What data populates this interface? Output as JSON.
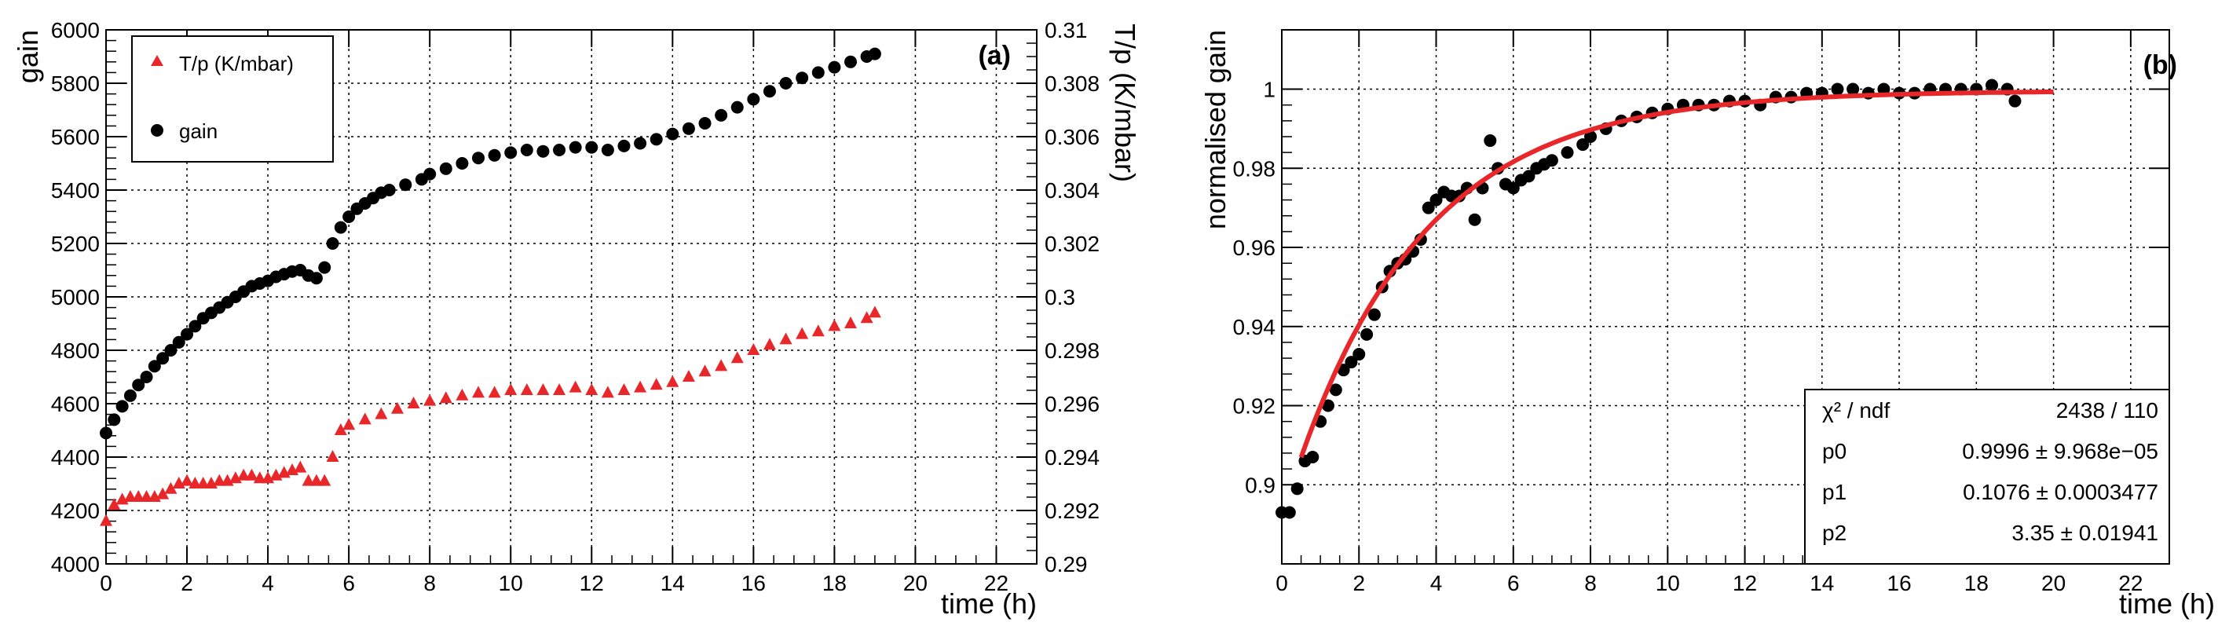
{
  "chart_data": [
    {
      "type": "scatter",
      "panel_label": "(a)",
      "xlabel": "time (h)",
      "ylabel": "gain",
      "y2label": "T/p (K/mbar)",
      "xlim": [
        0,
        23
      ],
      "ylim": [
        4000,
        6000
      ],
      "y2lim": [
        0.29,
        0.31
      ],
      "grid": true,
      "legend_position": "top-left",
      "x_ticks": [
        "0",
        "2",
        "4",
        "6",
        "8",
        "10",
        "12",
        "14",
        "16",
        "18",
        "20",
        "22"
      ],
      "y_ticks": [
        "4000",
        "4200",
        "4400",
        "4600",
        "4800",
        "5000",
        "5200",
        "5400",
        "5600",
        "5800",
        "6000"
      ],
      "y2_ticks": [
        "0.29",
        "0.292",
        "0.294",
        "0.296",
        "0.298",
        "0.3",
        "0.302",
        "0.304",
        "0.306",
        "0.308",
        "0.31"
      ],
      "series": [
        {
          "name": "gain",
          "axis": "left",
          "marker": "circle",
          "color": "#000000",
          "points": [
            [
              0,
              4490
            ],
            [
              0.2,
              4540
            ],
            [
              0.4,
              4590
            ],
            [
              0.6,
              4630
            ],
            [
              0.8,
              4670
            ],
            [
              1,
              4700
            ],
            [
              1.2,
              4740
            ],
            [
              1.4,
              4770
            ],
            [
              1.6,
              4800
            ],
            [
              1.8,
              4830
            ],
            [
              2,
              4860
            ],
            [
              2.2,
              4890
            ],
            [
              2.4,
              4920
            ],
            [
              2.6,
              4940
            ],
            [
              2.8,
              4960
            ],
            [
              3,
              4980
            ],
            [
              3.2,
              5000
            ],
            [
              3.4,
              5020
            ],
            [
              3.6,
              5040
            ],
            [
              3.8,
              5050
            ],
            [
              4,
              5060
            ],
            [
              4.2,
              5075
            ],
            [
              4.4,
              5085
            ],
            [
              4.6,
              5095
            ],
            [
              4.8,
              5100
            ],
            [
              5,
              5080
            ],
            [
              5.2,
              5070
            ],
            [
              5.4,
              5110
            ],
            [
              5.6,
              5200
            ],
            [
              5.8,
              5260
            ],
            [
              6,
              5300
            ],
            [
              6.2,
              5330
            ],
            [
              6.4,
              5350
            ],
            [
              6.6,
              5370
            ],
            [
              6.8,
              5390
            ],
            [
              7,
              5400
            ],
            [
              7.4,
              5420
            ],
            [
              7.8,
              5440
            ],
            [
              8,
              5460
            ],
            [
              8.4,
              5480
            ],
            [
              8.8,
              5500
            ],
            [
              9.2,
              5520
            ],
            [
              9.6,
              5530
            ],
            [
              10,
              5540
            ],
            [
              10.4,
              5550
            ],
            [
              10.8,
              5545
            ],
            [
              11.2,
              5550
            ],
            [
              11.6,
              5560
            ],
            [
              12,
              5560
            ],
            [
              12.4,
              5550
            ],
            [
              12.8,
              5565
            ],
            [
              13.2,
              5575
            ],
            [
              13.6,
              5590
            ],
            [
              14,
              5610
            ],
            [
              14.4,
              5630
            ],
            [
              14.8,
              5650
            ],
            [
              15.2,
              5680
            ],
            [
              15.6,
              5710
            ],
            [
              16,
              5740
            ],
            [
              16.4,
              5770
            ],
            [
              16.8,
              5800
            ],
            [
              17.2,
              5820
            ],
            [
              17.6,
              5840
            ],
            [
              18,
              5860
            ],
            [
              18.4,
              5880
            ],
            [
              18.8,
              5900
            ],
            [
              19,
              5910
            ]
          ]
        },
        {
          "name": "T/p (K/mbar)",
          "axis": "right",
          "marker": "triangle",
          "color": "#e8272a",
          "points": [
            [
              0,
              0.2916
            ],
            [
              0.2,
              0.2922
            ],
            [
              0.4,
              0.2924
            ],
            [
              0.6,
              0.2925
            ],
            [
              0.8,
              0.2925
            ],
            [
              1,
              0.2925
            ],
            [
              1.2,
              0.2925
            ],
            [
              1.4,
              0.2926
            ],
            [
              1.6,
              0.2928
            ],
            [
              1.8,
              0.293
            ],
            [
              2,
              0.2931
            ],
            [
              2.2,
              0.293
            ],
            [
              2.4,
              0.293
            ],
            [
              2.6,
              0.293
            ],
            [
              2.8,
              0.2931
            ],
            [
              3,
              0.2931
            ],
            [
              3.2,
              0.2932
            ],
            [
              3.4,
              0.2933
            ],
            [
              3.6,
              0.2933
            ],
            [
              3.8,
              0.2932
            ],
            [
              4,
              0.2932
            ],
            [
              4.2,
              0.2933
            ],
            [
              4.4,
              0.2934
            ],
            [
              4.6,
              0.2935
            ],
            [
              4.8,
              0.2936
            ],
            [
              5,
              0.2931
            ],
            [
              5.2,
              0.2931
            ],
            [
              5.4,
              0.2931
            ],
            [
              5.6,
              0.294
            ],
            [
              5.8,
              0.295
            ],
            [
              6,
              0.2952
            ],
            [
              6.4,
              0.2954
            ],
            [
              6.8,
              0.2956
            ],
            [
              7.2,
              0.2958
            ],
            [
              7.6,
              0.296
            ],
            [
              8,
              0.2961
            ],
            [
              8.4,
              0.2962
            ],
            [
              8.8,
              0.2963
            ],
            [
              9.2,
              0.2964
            ],
            [
              9.6,
              0.2964
            ],
            [
              10,
              0.2965
            ],
            [
              10.4,
              0.2965
            ],
            [
              10.8,
              0.2965
            ],
            [
              11.2,
              0.2965
            ],
            [
              11.6,
              0.2966
            ],
            [
              12,
              0.2965
            ],
            [
              12.4,
              0.2964
            ],
            [
              12.8,
              0.2965
            ],
            [
              13.2,
              0.2966
            ],
            [
              13.6,
              0.2967
            ],
            [
              14,
              0.2968
            ],
            [
              14.4,
              0.297
            ],
            [
              14.8,
              0.2972
            ],
            [
              15.2,
              0.2974
            ],
            [
              15.6,
              0.2977
            ],
            [
              16,
              0.298
            ],
            [
              16.4,
              0.2982
            ],
            [
              16.8,
              0.2984
            ],
            [
              17.2,
              0.2986
            ],
            [
              17.6,
              0.2987
            ],
            [
              18,
              0.2989
            ],
            [
              18.4,
              0.299
            ],
            [
              18.8,
              0.2992
            ],
            [
              19,
              0.2994
            ]
          ]
        }
      ]
    },
    {
      "type": "scatter",
      "panel_label": "(b)",
      "xlabel": "time (h)",
      "ylabel": "normalised gain",
      "xlim": [
        0,
        23
      ],
      "ylim": [
        0.88,
        1.015
      ],
      "grid": true,
      "x_ticks": [
        "0",
        "2",
        "4",
        "6",
        "8",
        "10",
        "12",
        "14",
        "16",
        "18",
        "20",
        "22"
      ],
      "y_ticks": [
        "0.9",
        "0.92",
        "0.94",
        "0.96",
        "0.98",
        "1"
      ],
      "fit": {
        "color": "#e8272a",
        "x_range": [
          0.5,
          20
        ],
        "p0": 0.9996,
        "p1": 0.1076,
        "p2": 3.35
      },
      "stats_box": [
        {
          "label": "χ² / ndf",
          "value": "2438 / 110"
        },
        {
          "label": "p0",
          "value": "0.9996 ± 9.968e−05"
        },
        {
          "label": "p1",
          "value": "0.1076 ± 0.0003477"
        },
        {
          "label": "p2",
          "value": "3.35 ± 0.01941"
        }
      ],
      "series": [
        {
          "name": "normalised gain",
          "marker": "circle",
          "color": "#000000",
          "points": [
            [
              0,
              0.893
            ],
            [
              0.2,
              0.893
            ],
            [
              0.4,
              0.899
            ],
            [
              0.6,
              0.906
            ],
            [
              0.8,
              0.907
            ],
            [
              1,
              0.916
            ],
            [
              1.2,
              0.92
            ],
            [
              1.4,
              0.924
            ],
            [
              1.6,
              0.929
            ],
            [
              1.8,
              0.931
            ],
            [
              2,
              0.933
            ],
            [
              2.2,
              0.938
            ],
            [
              2.4,
              0.943
            ],
            [
              2.6,
              0.95
            ],
            [
              2.8,
              0.954
            ],
            [
              3,
              0.956
            ],
            [
              3.2,
              0.957
            ],
            [
              3.4,
              0.959
            ],
            [
              3.6,
              0.962
            ],
            [
              3.8,
              0.97
            ],
            [
              4,
              0.972
            ],
            [
              4.2,
              0.974
            ],
            [
              4.4,
              0.973
            ],
            [
              4.6,
              0.973
            ],
            [
              4.8,
              0.975
            ],
            [
              5,
              0.967
            ],
            [
              5.2,
              0.975
            ],
            [
              5.4,
              0.987
            ],
            [
              5.6,
              0.98
            ],
            [
              5.8,
              0.976
            ],
            [
              6,
              0.975
            ],
            [
              6.2,
              0.977
            ],
            [
              6.4,
              0.978
            ],
            [
              6.6,
              0.98
            ],
            [
              6.8,
              0.981
            ],
            [
              7,
              0.982
            ],
            [
              7.4,
              0.984
            ],
            [
              7.8,
              0.986
            ],
            [
              8,
              0.988
            ],
            [
              8.4,
              0.99
            ],
            [
              8.8,
              0.992
            ],
            [
              9.2,
              0.993
            ],
            [
              9.6,
              0.994
            ],
            [
              10,
              0.995
            ],
            [
              10.4,
              0.996
            ],
            [
              10.8,
              0.996
            ],
            [
              11.2,
              0.996
            ],
            [
              11.6,
              0.997
            ],
            [
              12,
              0.997
            ],
            [
              12.4,
              0.996
            ],
            [
              12.8,
              0.998
            ],
            [
              13.2,
              0.998
            ],
            [
              13.6,
              0.999
            ],
            [
              14,
              0.999
            ],
            [
              14.4,
              1.0
            ],
            [
              14.8,
              1.0
            ],
            [
              15.2,
              0.999
            ],
            [
              15.6,
              1.0
            ],
            [
              16,
              0.999
            ],
            [
              16.4,
              0.999
            ],
            [
              16.8,
              1.0
            ],
            [
              17.2,
              1.0
            ],
            [
              17.6,
              1.0
            ],
            [
              18,
              1.0
            ],
            [
              18.4,
              1.001
            ],
            [
              18.8,
              1.0
            ],
            [
              19,
              0.997
            ]
          ]
        }
      ]
    }
  ]
}
